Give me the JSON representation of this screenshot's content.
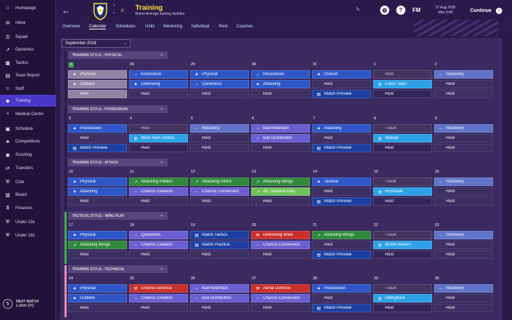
{
  "sidebar": {
    "items": [
      {
        "label": "Homepage",
        "icon": "home-icon",
        "glyph": "⌂"
      },
      {
        "label": "Inbox",
        "icon": "inbox-icon",
        "glyph": "✉"
      },
      {
        "label": "Squad",
        "icon": "squad-icon",
        "glyph": "☰"
      },
      {
        "label": "Dynamics",
        "icon": "dynamics-icon",
        "glyph": "↗"
      },
      {
        "label": "Tactics",
        "icon": "tactics-icon",
        "glyph": "▦"
      },
      {
        "label": "Team Report",
        "icon": "report-icon",
        "glyph": "▤"
      },
      {
        "label": "Staff",
        "icon": "staff-icon",
        "glyph": "☺"
      },
      {
        "label": "Training",
        "icon": "training-icon",
        "glyph": "◆",
        "active": true
      },
      {
        "label": "Medical Centre",
        "icon": "medical-icon",
        "glyph": "+"
      },
      {
        "label": "Schedule",
        "icon": "schedule-icon",
        "glyph": "▣"
      },
      {
        "label": "Competitions",
        "icon": "competitions-icon",
        "glyph": "★"
      },
      {
        "label": "Scouting",
        "icon": "scouting-icon",
        "glyph": "◉"
      },
      {
        "label": "Transfers",
        "icon": "transfers-icon",
        "glyph": "⇄"
      },
      {
        "label": "Club",
        "icon": "club-icon",
        "glyph": "⛨"
      },
      {
        "label": "Board",
        "icon": "board-icon",
        "glyph": "▥"
      },
      {
        "label": "Finances",
        "icon": "finances-icon",
        "glyph": "$"
      },
      {
        "label": "Under 23s",
        "icon": "u23-icon",
        "glyph": "⛨"
      },
      {
        "label": "Under 18s",
        "icon": "u18-icon",
        "glyph": "⛨"
      }
    ],
    "next_match": {
      "number": "5",
      "label": "NEXT MATCH",
      "opponent": "Luton (H)"
    }
  },
  "header": {
    "title": "Training",
    "subtitle": "Below Average training facilities",
    "fm": "FM",
    "date": "27 Aug 2018",
    "day": "Mon 0:00",
    "continue": "Continue",
    "colors": {
      "accent": "#ffde3b",
      "active": "#4a37c7"
    }
  },
  "tabs": [
    "Overview",
    "Calendar",
    "Schedules",
    "Units",
    "Mentoring",
    "Individual",
    "Rest",
    "Coaches"
  ],
  "month_select": "September 2018",
  "weeks": [
    {
      "style": "TRAINING STYLE - PHYSICAL",
      "bar": "#2a1a47",
      "days": [
        {
          "num": "",
          "check": true,
          "slots": [
            [
              "Physical",
              "grey",
              "▲"
            ],
            [
              "Outfield",
              "grey",
              "▲"
            ],
            [
              "Rest",
              "grey",
              ""
            ]
          ]
        },
        {
          "num": "28",
          "slots": [
            [
              "Endurance",
              "blue",
              "↔"
            ],
            [
              "Defending",
              "blue",
              "▲"
            ],
            [
              "Rest",
              "rest",
              ""
            ]
          ]
        },
        {
          "num": "29",
          "slots": [
            [
              "Physical",
              "blue",
              "▲"
            ],
            [
              "Quickness",
              "blue",
              "↔"
            ],
            [
              "Rest",
              "rest",
              ""
            ]
          ]
        },
        {
          "num": "30",
          "slots": [
            [
              "Resistance",
              "blue",
              "↔"
            ],
            [
              "Attacking",
              "blue",
              "▲"
            ],
            [
              "Rest",
              "rest",
              ""
            ]
          ]
        },
        {
          "num": "31",
          "slots": [
            [
              "Overall",
              "blue",
              "▲"
            ],
            [
              "Rest",
              "rest",
              ""
            ],
            [
              "Match Preview",
              "navy",
              "▤"
            ]
          ]
        },
        {
          "num": "1",
          "slots": [
            [
              "Rest",
              "travel",
              ""
            ],
            [
              "Luton Town",
              "cyan",
              "◍"
            ],
            [
              "Rest",
              "dark",
              ""
            ]
          ]
        },
        {
          "num": "2",
          "slots": [
            [
              "Recovery",
              "light",
              "↔"
            ],
            [
              "Rest",
              "rest",
              ""
            ],
            [
              "Rest",
              "rest",
              ""
            ]
          ]
        }
      ]
    },
    {
      "style": "TRAINING STYLE - POSSESSION",
      "bar": "#2a1a47",
      "days": [
        {
          "num": "3",
          "slots": [
            [
              "Possession",
              "blue",
              "▲"
            ],
            [
              "Rest",
              "rest",
              ""
            ],
            [
              "Match Preview",
              "navy",
              "▤"
            ]
          ]
        },
        {
          "num": "4",
          "slots": [
            [
              "Rest",
              "travel",
              ""
            ],
            [
              "West Ham United...",
              "cyan",
              "◍"
            ],
            [
              "Rest",
              "dark",
              ""
            ]
          ]
        },
        {
          "num": "5",
          "slots": [
            [
              "Recovery",
              "light",
              "↔"
            ],
            [
              "Rest",
              "rest",
              ""
            ],
            [
              "Rest",
              "rest",
              ""
            ]
          ]
        },
        {
          "num": "6",
          "slots": [
            [
              "Ball Retention",
              "purple",
              "↔"
            ],
            [
              "Ball Distribution",
              "purple",
              "↔"
            ],
            [
              "Rest",
              "rest",
              ""
            ]
          ]
        },
        {
          "num": "7",
          "slots": [
            [
              "Attacking",
              "blue",
              "▲"
            ],
            [
              "Rest",
              "rest",
              ""
            ],
            [
              "Match Preview",
              "navy",
              "▤"
            ]
          ]
        },
        {
          "num": "8",
          "slots": [
            [
              "Travel",
              "travel",
              ""
            ],
            [
              "Walsall",
              "cyan",
              "◍"
            ],
            [
              "Rest",
              "dark",
              ""
            ]
          ]
        },
        {
          "num": "9",
          "slots": [
            [
              "Recovery",
              "light",
              "↔"
            ],
            [
              "Rest",
              "rest",
              ""
            ],
            [
              "Rest",
              "rest",
              ""
            ]
          ]
        }
      ]
    },
    {
      "style": "TRAINING STYLE - ATTACK",
      "bar": "#2a1a47",
      "days": [
        {
          "num": "10",
          "slots": [
            [
              "Physical",
              "blue",
              "▲"
            ],
            [
              "Attacking",
              "blue",
              "▲"
            ],
            [
              "Rest",
              "rest",
              ""
            ]
          ]
        },
        {
          "num": "11",
          "slots": [
            [
              "Attacking Patient",
              "green",
              "↗"
            ],
            [
              "Chance Creation",
              "purple",
              "↔"
            ],
            [
              "Rest",
              "rest",
              ""
            ]
          ]
        },
        {
          "num": "12",
          "slots": [
            [
              "Attacking Direct",
              "green",
              "↗"
            ],
            [
              "Chance Conversion",
              "purple",
              "↔"
            ],
            [
              "Rest",
              "rest",
              ""
            ]
          ]
        },
        {
          "num": "13",
          "slots": [
            [
              "Attacking Wings",
              "green",
              "↗"
            ],
            [
              "Att. Shadow Play",
              "lime",
              "↗"
            ],
            [
              "Rest",
              "rest",
              ""
            ]
          ]
        },
        {
          "num": "14",
          "slots": [
            [
              "Tactical",
              "blue",
              "▲"
            ],
            [
              "Rest",
              "rest",
              ""
            ],
            [
              "Match Preview",
              "navy",
              "▤"
            ]
          ]
        },
        {
          "num": "15",
          "slots": [
            [
              "Travel",
              "travel",
              ""
            ],
            [
              "Rochdale",
              "cyan",
              "◍"
            ],
            [
              "Rest",
              "dark",
              ""
            ]
          ]
        },
        {
          "num": "16",
          "slots": [
            [
              "Recovery",
              "light",
              "↔"
            ],
            [
              "Rest",
              "rest",
              ""
            ],
            [
              "Rest",
              "rest",
              ""
            ]
          ]
        }
      ]
    },
    {
      "style": "TACTICAL STYLE - WING PLAY",
      "bar": "#3bb54a",
      "days": [
        {
          "num": "17",
          "slots": [
            [
              "Physical",
              "blue",
              "▲"
            ],
            [
              "Attacking Wings",
              "green",
              "↗"
            ],
            [
              "Rest",
              "rest",
              ""
            ]
          ]
        },
        {
          "num": "18",
          "slots": [
            [
              "Quickness",
              "purple",
              "↔"
            ],
            [
              "Chance Creation",
              "purple",
              "↔"
            ],
            [
              "Rest",
              "rest",
              ""
            ]
          ]
        },
        {
          "num": "19",
          "slots": [
            [
              "Match Tactics",
              "navy",
              "▤"
            ],
            [
              "Match Practice",
              "navy",
              "▤"
            ],
            [
              "Rest",
              "rest",
              ""
            ]
          ]
        },
        {
          "num": "20",
          "slots": [
            [
              "Defending Wide",
              "red",
              "⚒"
            ],
            [
              "Chance Conversion",
              "purple",
              "↔"
            ],
            [
              "Rest",
              "rest",
              ""
            ]
          ]
        },
        {
          "num": "21",
          "slots": [
            [
              "Attacking Wings",
              "green",
              "↗"
            ],
            [
              "Rest",
              "rest",
              ""
            ],
            [
              "Match Preview",
              "navy",
              "▤"
            ]
          ]
        },
        {
          "num": "22",
          "slots": [
            [
              "Travel",
              "travel",
              ""
            ],
            [
              "Bristol Rovers",
              "cyan",
              "◍"
            ],
            [
              "Rest",
              "dark",
              ""
            ]
          ]
        },
        {
          "num": "23",
          "slots": [
            [
              "Recovery",
              "light",
              "↔"
            ],
            [
              "Rest",
              "rest",
              ""
            ],
            [
              "Rest",
              "rest",
              ""
            ]
          ]
        }
      ]
    },
    {
      "style": "TRAINING STYLE - TECHNICAL",
      "bar": "#e890b6",
      "days": [
        {
          "num": "24",
          "slots": [
            [
              "Physical",
              "blue",
              "▲"
            ],
            [
              "Outfield",
              "blue",
              "▲"
            ],
            [
              "Rest",
              "rest",
              ""
            ]
          ]
        },
        {
          "num": "25",
          "slots": [
            [
              "Ground Defence",
              "red",
              "⚒"
            ],
            [
              "Chance Creation",
              "purple",
              "↔"
            ],
            [
              "Rest",
              "rest",
              ""
            ]
          ]
        },
        {
          "num": "26",
          "slots": [
            [
              "Ball Retention",
              "purple",
              "↔"
            ],
            [
              "Ball Distribution",
              "purple",
              "↔"
            ],
            [
              "Rest",
              "rest",
              ""
            ]
          ]
        },
        {
          "num": "27",
          "slots": [
            [
              "Aerial Defence",
              "red",
              "⚒"
            ],
            [
              "Chance Conversion",
              "purple",
              "↔"
            ],
            [
              "Rest",
              "rest",
              ""
            ]
          ]
        },
        {
          "num": "28",
          "slots": [
            [
              "Possession",
              "blue",
              "▲"
            ],
            [
              "Rest",
              "rest",
              ""
            ],
            [
              "Match Preview",
              "navy",
              "▤"
            ]
          ]
        },
        {
          "num": "29",
          "slots": [
            [
              "Travel",
              "travel",
              ""
            ],
            [
              "Gillingham",
              "cyan",
              "◍"
            ],
            [
              "Rest",
              "dark",
              ""
            ]
          ]
        },
        {
          "num": "30",
          "slots": [
            [
              "Recovery",
              "light",
              "↔"
            ],
            [
              "Rest",
              "rest",
              ""
            ],
            [
              "Rest",
              "rest",
              ""
            ]
          ]
        }
      ]
    }
  ]
}
